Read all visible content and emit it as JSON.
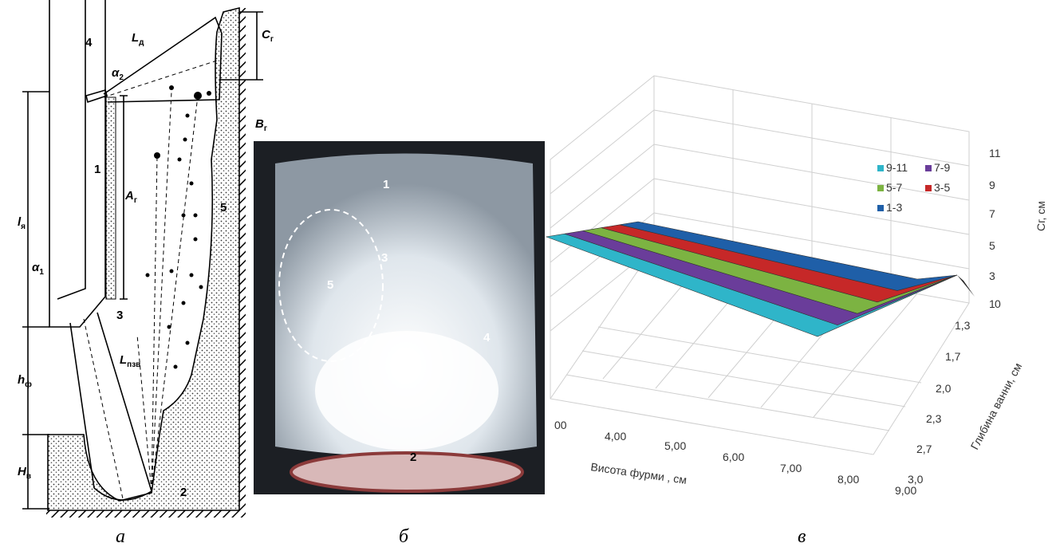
{
  "panel_a": {
    "labels": [
      {
        "text": "4"
      },
      {
        "text": "1"
      },
      {
        "text": "3"
      },
      {
        "text": "2"
      },
      {
        "text": "5"
      },
      {
        "text": "L",
        "sub": "д"
      },
      {
        "text": "α",
        "sub": "2"
      },
      {
        "text": "C",
        "sub": "г"
      },
      {
        "text": "А",
        "sub": "г"
      },
      {
        "text": "l",
        "sub": "я"
      },
      {
        "text": "α",
        "sub": "1"
      },
      {
        "text": "L",
        "sub": "пзв"
      },
      {
        "text": "h",
        "sub": "ф"
      },
      {
        "text": "H",
        "sub": "в"
      }
    ]
  },
  "panel_b": {
    "labels": [
      {
        "text": "В",
        "sub": "г"
      },
      {
        "text": "1"
      },
      {
        "text": "3"
      },
      {
        "text": "5"
      },
      {
        "text": "4"
      },
      {
        "text": "2"
      }
    ]
  },
  "panel_c": {
    "legend": [
      "9-11",
      "7-9",
      "5-7",
      "3-5",
      "1-3"
    ],
    "z_title": "Сг, см",
    "x_title": "Висота фурми , см",
    "y_title": "Глибина ванни, см",
    "z_ticks": [
      "11",
      "9",
      "7",
      "5",
      "3",
      "1"
    ],
    "x_ticks": [
      "00",
      "4,00",
      "5,00",
      "6,00",
      "7,00",
      "8,00",
      "9,00"
    ],
    "y_ticks": [
      "0",
      "1,3",
      "1,7",
      "2,0",
      "2,3",
      "2,7",
      "3,0"
    ]
  },
  "captions": [
    "а",
    "б",
    "в"
  ]
}
